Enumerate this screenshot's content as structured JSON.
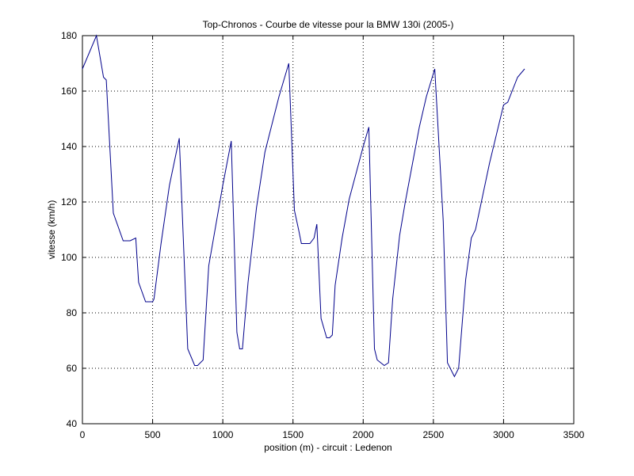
{
  "chart_data": {
    "type": "line",
    "title": "Top-Chronos - Courbe de vitesse pour la BMW 130i (2005-)",
    "xlabel": "position (m) - circuit : Ledenon",
    "ylabel": "vitesse (km/h)",
    "xlim": [
      0,
      3500
    ],
    "ylim": [
      40,
      180
    ],
    "xticks": [
      0,
      500,
      1000,
      1500,
      2000,
      2500,
      3000,
      3500
    ],
    "yticks": [
      40,
      60,
      80,
      100,
      120,
      140,
      160,
      180
    ],
    "grid": true,
    "line_color": "#00008b",
    "series": [
      {
        "x": [
          0,
          100,
          150,
          170,
          220,
          290,
          340,
          380,
          400,
          450,
          500,
          510,
          560,
          620,
          690,
          750,
          800,
          820,
          860,
          900,
          1000,
          1060,
          1100,
          1120,
          1140,
          1180,
          1240,
          1300,
          1400,
          1470,
          1510,
          1540,
          1560,
          1620,
          1650,
          1670,
          1700,
          1740,
          1760,
          1780,
          1800,
          1850,
          1900,
          2000,
          2040,
          2080,
          2100,
          2150,
          2180,
          2210,
          2260,
          2300,
          2400,
          2450,
          2510,
          2570,
          2600,
          2650,
          2680,
          2730,
          2770,
          2800,
          2900,
          3000,
          3030,
          3100,
          3150
        ],
        "y": [
          168,
          180,
          165,
          164,
          116,
          106,
          106,
          107,
          91,
          84,
          84,
          85,
          105,
          126,
          143,
          67,
          61,
          61,
          63,
          97,
          126,
          142,
          73,
          67,
          67,
          91,
          118,
          138,
          158,
          170,
          117,
          110,
          105,
          105,
          107,
          112,
          78,
          71,
          71,
          72,
          90,
          107,
          121,
          140,
          147,
          67,
          63,
          61,
          62,
          85,
          108,
          120,
          147,
          158,
          168,
          113,
          62,
          57,
          60,
          92,
          107,
          110,
          134,
          155,
          156,
          165,
          168
        ]
      }
    ]
  }
}
